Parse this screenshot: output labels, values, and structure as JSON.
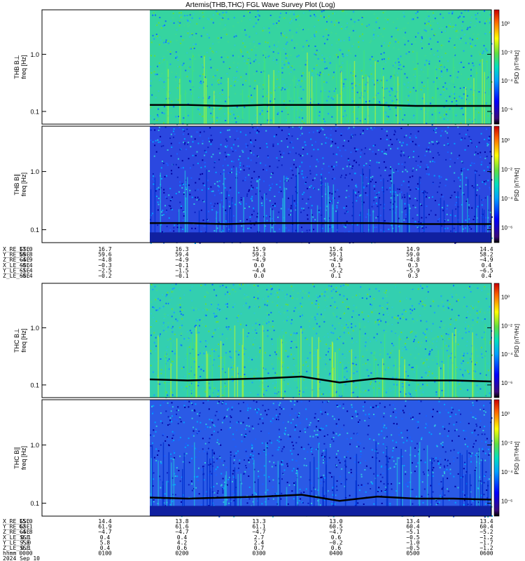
{
  "title": "Artemis(THB,THC) FGL Wave Survey Plot (Log)",
  "colorbar_ticks": [
    "10⁰",
    "10⁻²",
    "10⁻⁴",
    "10⁻⁶"
  ],
  "colorbar_label": "PSD [nT²/Hz]",
  "freq_unit_label": "freq [Hz]",
  "chart_data": [
    {
      "type": "heatmap",
      "panel": "THB B⊥",
      "ylabel": "freq [Hz]",
      "yscale": "log",
      "ytick_labels": [
        "1.0",
        "0.1"
      ],
      "data_start_fraction": 0.24,
      "background": "green-cyan",
      "line_series": {
        "name": "f_ci",
        "values_hz": [
          0.13,
          0.13,
          0.125,
          0.13,
          0.13,
          0.13,
          0.13,
          0.125,
          0.125,
          0.125
        ]
      }
    },
    {
      "type": "heatmap",
      "panel": "THB B∥",
      "ylabel": "freq [Hz]",
      "yscale": "log",
      "ytick_labels": [
        "1.0",
        "0.1"
      ],
      "data_start_fraction": 0.24,
      "background": "blue",
      "line_series": {
        "name": "f_ci",
        "values_hz": [
          0.13,
          0.13,
          0.125,
          0.13,
          0.13,
          0.13,
          0.13,
          0.125,
          0.125,
          0.125
        ]
      }
    },
    {
      "type": "heatmap",
      "panel": "THC B⊥",
      "ylabel": "freq [Hz]",
      "yscale": "log",
      "ytick_labels": [
        "1.0",
        "0.1"
      ],
      "data_start_fraction": 0.24,
      "gaps_fraction": [
        0.115,
        0.138
      ],
      "background": "green-cyan",
      "line_series": {
        "name": "f_ci",
        "values_hz": [
          0.125,
          0.12,
          0.125,
          0.13,
          0.14,
          0.11,
          0.13,
          0.12,
          0.12,
          0.115
        ]
      }
    },
    {
      "type": "heatmap",
      "panel": "THC B∥",
      "ylabel": "freq [Hz]",
      "yscale": "log",
      "ytick_labels": [
        "1.0",
        "0.1"
      ],
      "data_start_fraction": 0.24,
      "gaps_fraction": [
        0.115,
        0.138
      ],
      "background": "blue",
      "line_series": {
        "name": "f_ci",
        "values_hz": [
          0.125,
          0.12,
          0.125,
          0.13,
          0.14,
          0.11,
          0.13,
          0.12,
          0.12,
          0.115
        ]
      }
    }
  ],
  "thb_ephemeris": {
    "labels": [
      "X_RE_GSE",
      "Y_RE_GSE",
      "Z_RE_GSE",
      "X_LE_SSE",
      "Y_LE_SSE",
      "Z_LE_SSE"
    ],
    "columns": [
      [
        "17.0",
        "59.8",
        "−4.9",
        "−0.4",
        "−1.4",
        "−0.4"
      ],
      [
        "16.7",
        "59.6",
        "−4.8",
        "−0.3",
        "−2.5",
        "−0.2"
      ],
      [
        "16.3",
        "59.4",
        "−4.9",
        "−0.1",
        "−1.5",
        "−0.1"
      ],
      [
        "15.9",
        "59.3",
        "−4.9",
        "0.0",
        "−4.4",
        "0.0"
      ],
      [
        "15.4",
        "59.1",
        "−4.9",
        "0.1",
        "−5.2",
        "0.1"
      ],
      [
        "14.9",
        "59.0",
        "−4.8",
        "0.3",
        "−5.9",
        "0.3"
      ],
      [
        "14.4",
        "58.2",
        "−4.9",
        "0.4",
        "−6.5",
        "0.4"
      ]
    ]
  },
  "thc_ephemeris": {
    "labels": [
      "X_RE_GSE",
      "Y_RE_GSE",
      "Z_RE_GSE",
      "X_LE_SSE",
      "Y_LE_SSE",
      "Z_LE_SSE",
      "hhmm",
      "2024 Sep 10"
    ],
    "columns": [
      [
        "15.0",
        "62.1",
        "−4.8",
        "0.1",
        "7.0",
        "0.1",
        "0000"
      ],
      [
        "14.4",
        "61.9",
        "−4.7",
        "0.4",
        "5.8",
        "0.4",
        "0100"
      ],
      [
        "13.8",
        "61.6",
        "−4.7",
        "0.4",
        "4.2",
        "0.6",
        "0200"
      ],
      [
        "13.3",
        "61.1",
        "−4.7",
        "2.7",
        "2.4",
        "0.7",
        "0300"
      ],
      [
        "13.0",
        "60.5",
        "−4.7",
        "0.6",
        "−0.2",
        "0.6",
        "0400"
      ],
      [
        "13.4",
        "60.4",
        "−5.1",
        "−0.5",
        "−1.0",
        "−0.5",
        "0500"
      ],
      [
        "13.4",
        "60.4",
        "−5.2",
        "−1.2",
        "−1.7",
        "−1.2",
        "0600"
      ]
    ]
  },
  "colors": {
    "thb_perp_bg": "#35d4a0",
    "thb_par_bg": "#2b48e0",
    "thc_perp_bg": "#33cfb0",
    "thc_par_bg": "#2a5ae6",
    "line": "#000000"
  }
}
